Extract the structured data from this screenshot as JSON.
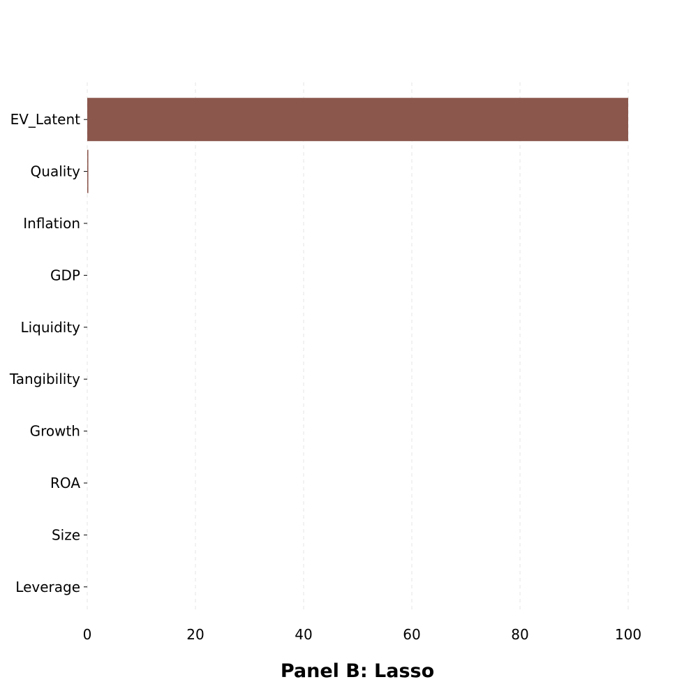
{
  "chart_data": {
    "type": "bar",
    "orientation": "horizontal",
    "title": "Panel B: Lasso",
    "title_position": "bottom",
    "xlabel": "",
    "ylabel": "",
    "categories": [
      "EV_Latent",
      "Quality",
      "Inflation",
      "GDP",
      "Liquidity",
      "Tangibility",
      "Growth",
      "ROA",
      "Size",
      "Leverage"
    ],
    "values": [
      100,
      0.2,
      0,
      0,
      0,
      0,
      0,
      0,
      0,
      0
    ],
    "xlim": [
      0,
      100
    ],
    "xticks": [
      "0",
      "20",
      "40",
      "60",
      "80",
      "100"
    ],
    "grid": "x, dashed",
    "legend": "none",
    "bar_color": "#8B574D"
  }
}
